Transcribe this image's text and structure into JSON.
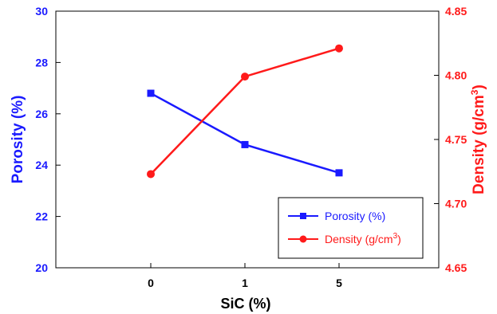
{
  "chart_data": {
    "type": "line",
    "categories": [
      "0",
      "1",
      "5"
    ],
    "xlabel": "SiC (%)",
    "y_left": {
      "label": "Porosity (%)",
      "ylim": [
        20,
        30
      ],
      "ticks": [
        "20",
        "22",
        "24",
        "26",
        "28",
        "30"
      ],
      "color": "#1a1aff"
    },
    "y_right": {
      "label": "Density (g/cm",
      "label_sup": "3",
      "label_end": ")",
      "ylim": [
        4.65,
        4.85
      ],
      "ticks": [
        "4.65",
        "4.70",
        "4.75",
        "4.80",
        "4.85"
      ],
      "color": "#ff1a1a"
    },
    "series": [
      {
        "name": "Porosity (%)",
        "axis": "left",
        "values": [
          26.8,
          24.8,
          23.7
        ],
        "color": "#1a1aff",
        "marker": "square"
      },
      {
        "name": "Density (g/cm",
        "name_sup": "3",
        "name_end": ")",
        "axis": "right",
        "values": [
          4.723,
          4.799,
          4.821
        ],
        "color": "#ff1a1a",
        "marker": "circle"
      }
    ],
    "legend_position": "bottom-right",
    "grid": false
  }
}
